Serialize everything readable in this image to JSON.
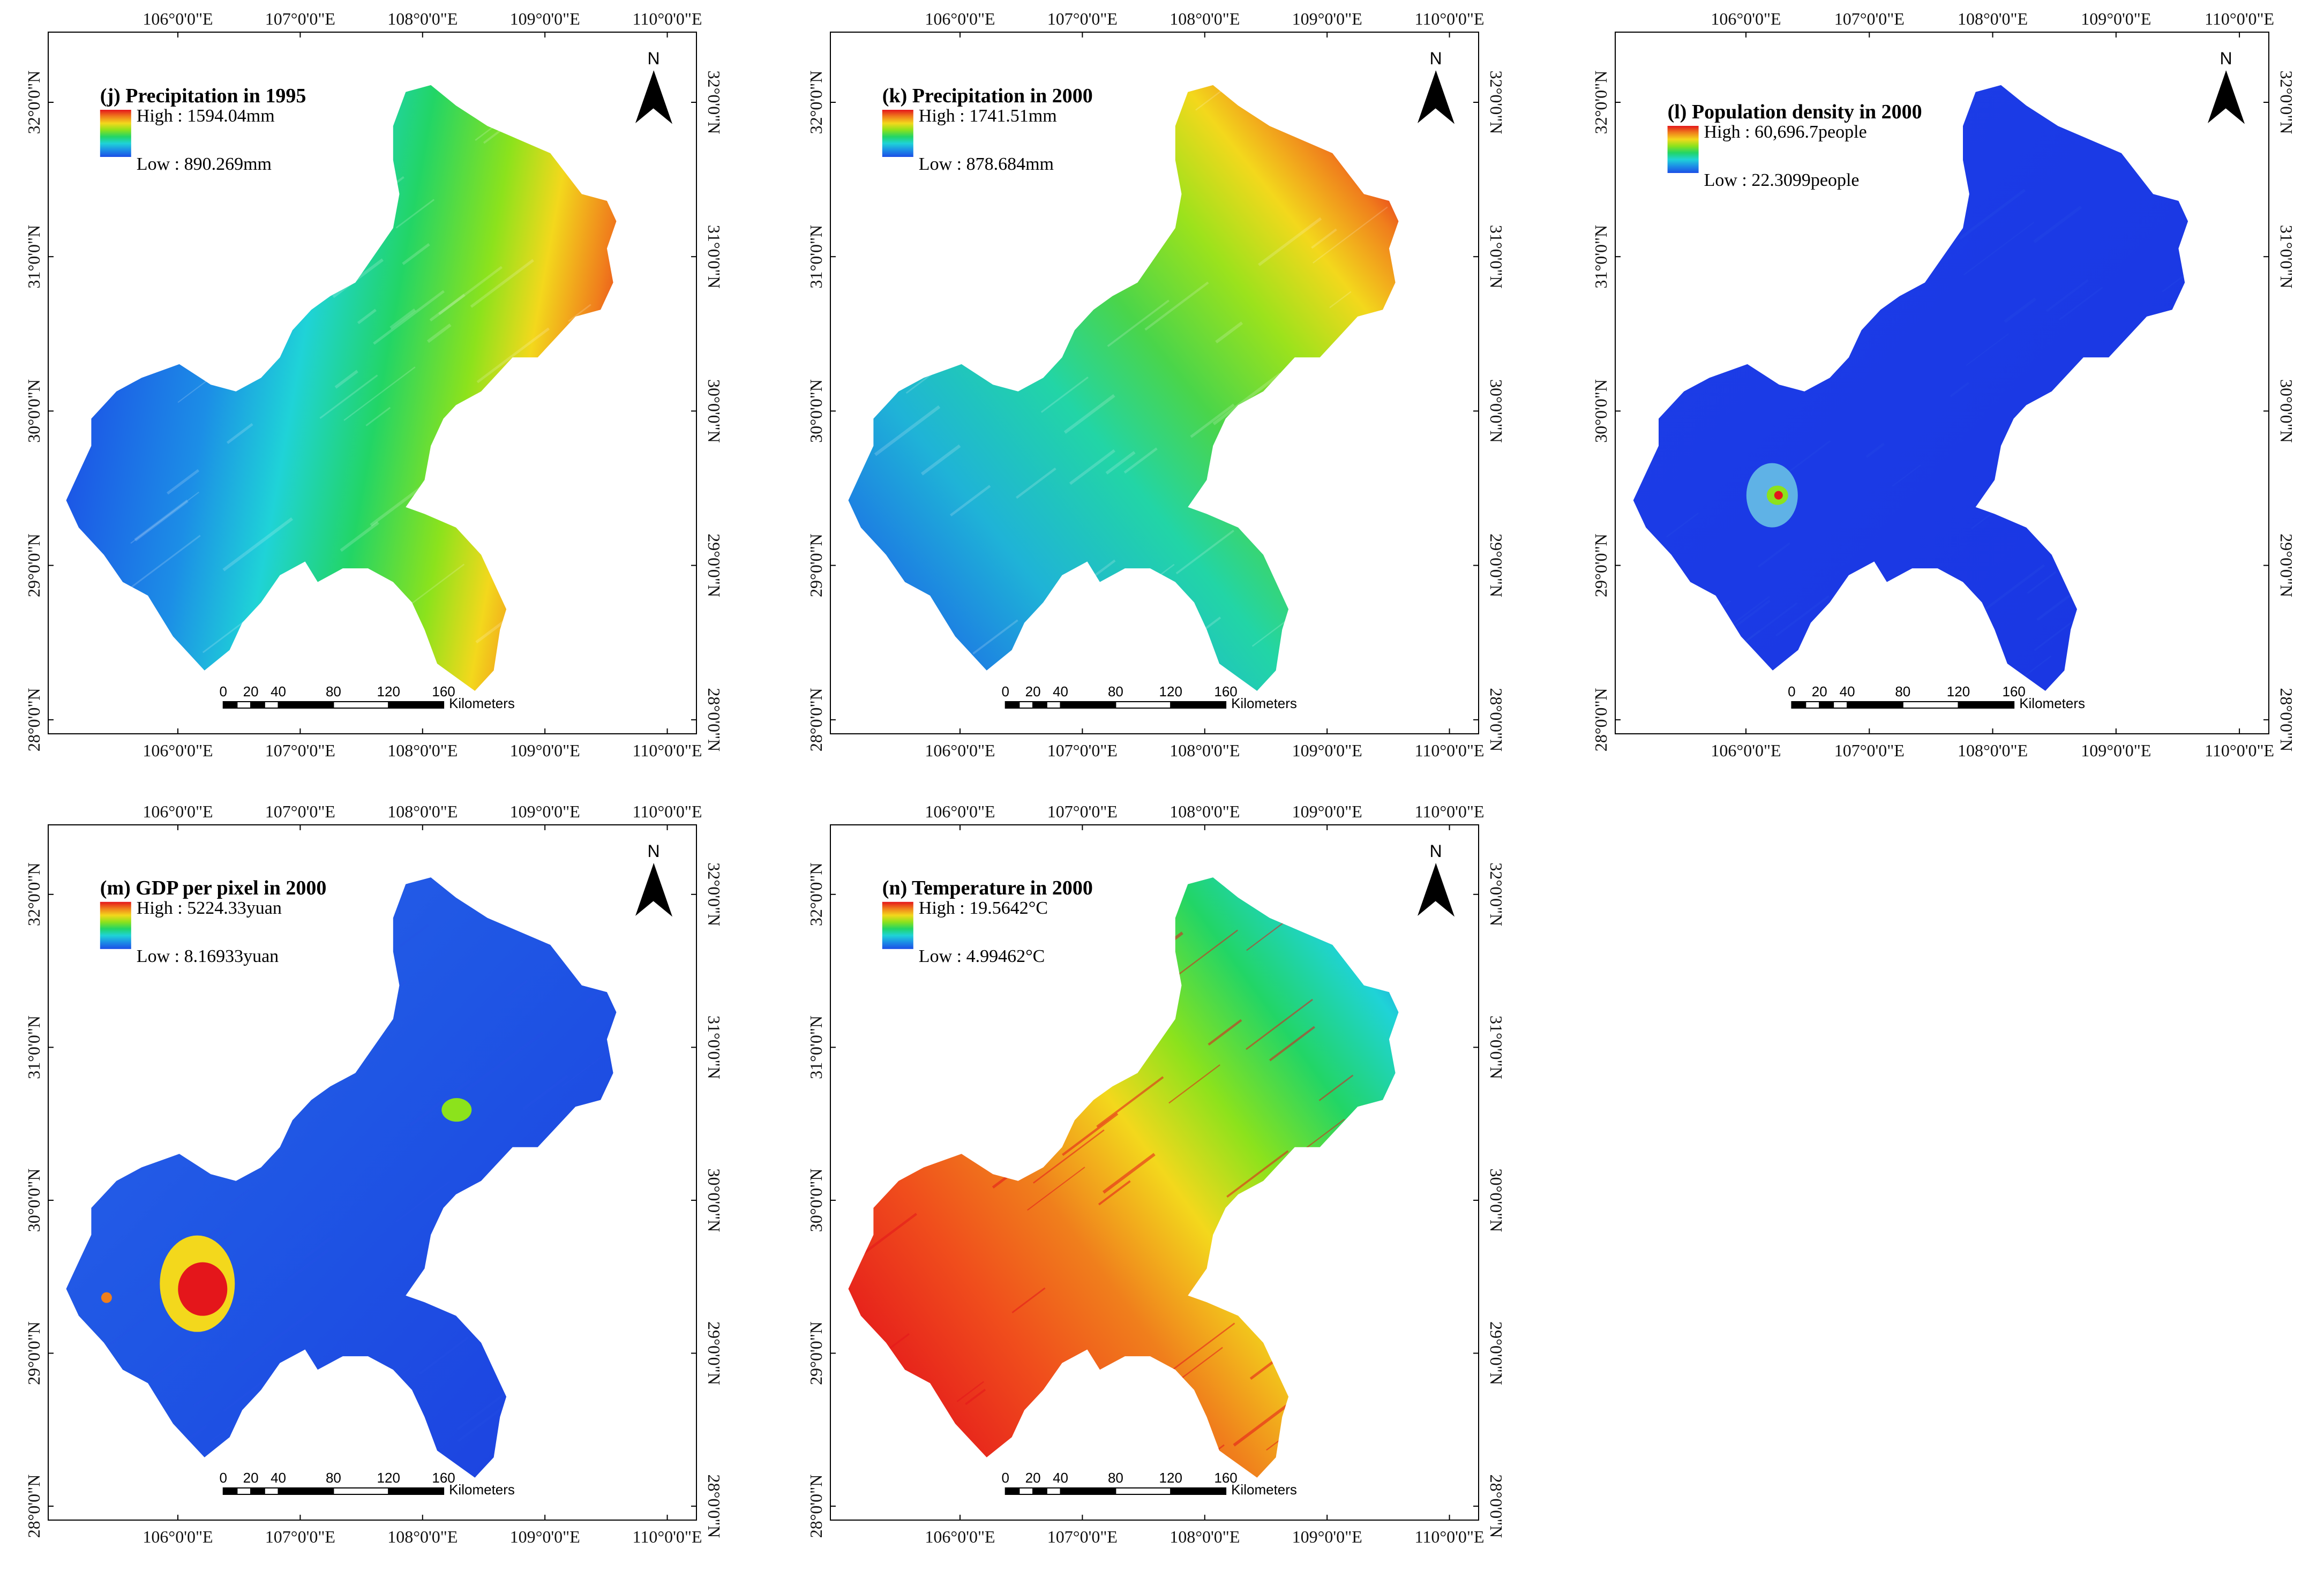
{
  "axes": {
    "lon_labels": [
      "106°0'0\"E",
      "107°0'0\"E",
      "108°0'0\"E",
      "109°0'0\"E",
      "110°0'0\"E"
    ],
    "lat_labels": [
      "32°0'0\"N",
      "31°0'0\"N",
      "30°0'0\"N",
      "29°0'0\"N",
      "28°0'0\"N"
    ]
  },
  "north_arrow": {
    "label": "N",
    "icon": "north-arrow-icon"
  },
  "scale_bar": {
    "ticks": [
      "0",
      "20",
      "40",
      "80",
      "120",
      "160"
    ],
    "unit": "Kilometers"
  },
  "panels": [
    {
      "id": "j",
      "title": "(j) Precipitation in 1995",
      "legend_high": "High : 1594.04mm",
      "legend_low": "Low : 890.269mm",
      "colors": [
        "#e4161b",
        "#f07f1c",
        "#f3d81c",
        "#8ce21c",
        "#22d566",
        "#1fd3d7",
        "#1c8ee6",
        "#1c4ee6"
      ],
      "pattern": "gradient-east-high"
    },
    {
      "id": "k",
      "title": "(k) Precipitation in 2000",
      "legend_high": "High : 1741.51mm",
      "legend_low": "Low : 878.684mm",
      "colors": [
        "#e4161b",
        "#f07f1c",
        "#f3d81c",
        "#8ce21c",
        "#22d566",
        "#1fd3d7",
        "#1c8ee6",
        "#1c4ee6"
      ],
      "pattern": "gradient-northeast-high"
    },
    {
      "id": "l",
      "title": "(l) Population density in 2000",
      "legend_high": "High : 60,696.7people",
      "legend_low": "Low : 22.3099people",
      "colors": [
        "#e4161b",
        "#f07f1c",
        "#f3d81c",
        "#8ce21c",
        "#22d566",
        "#1fd3d7",
        "#1c8ee6",
        "#1c4ee6"
      ],
      "pattern": "uniform-low-hotspot"
    },
    {
      "id": "m",
      "title": "(m) GDP per pixel in 2000",
      "legend_high": "High : 5224.33yuan",
      "legend_low": "Low : 8.16933yuan",
      "colors": [
        "#e4161b",
        "#f07f1c",
        "#f3d81c",
        "#8ce21c",
        "#22d566",
        "#1fd3d7",
        "#1c8ee6",
        "#1c4ee6"
      ],
      "pattern": "uniform-low-hotspot-large"
    },
    {
      "id": "n",
      "title": "(n) Temperature in 2000",
      "legend_high": "High : 19.5642°C",
      "legend_low": "Low : 4.99462°C",
      "colors": [
        "#e4161b",
        "#f07f1c",
        "#f3d81c",
        "#8ce21c",
        "#22d566",
        "#1fd3d7",
        "#1c8ee6",
        "#1c4ee6"
      ],
      "pattern": "gradient-west-high"
    }
  ]
}
